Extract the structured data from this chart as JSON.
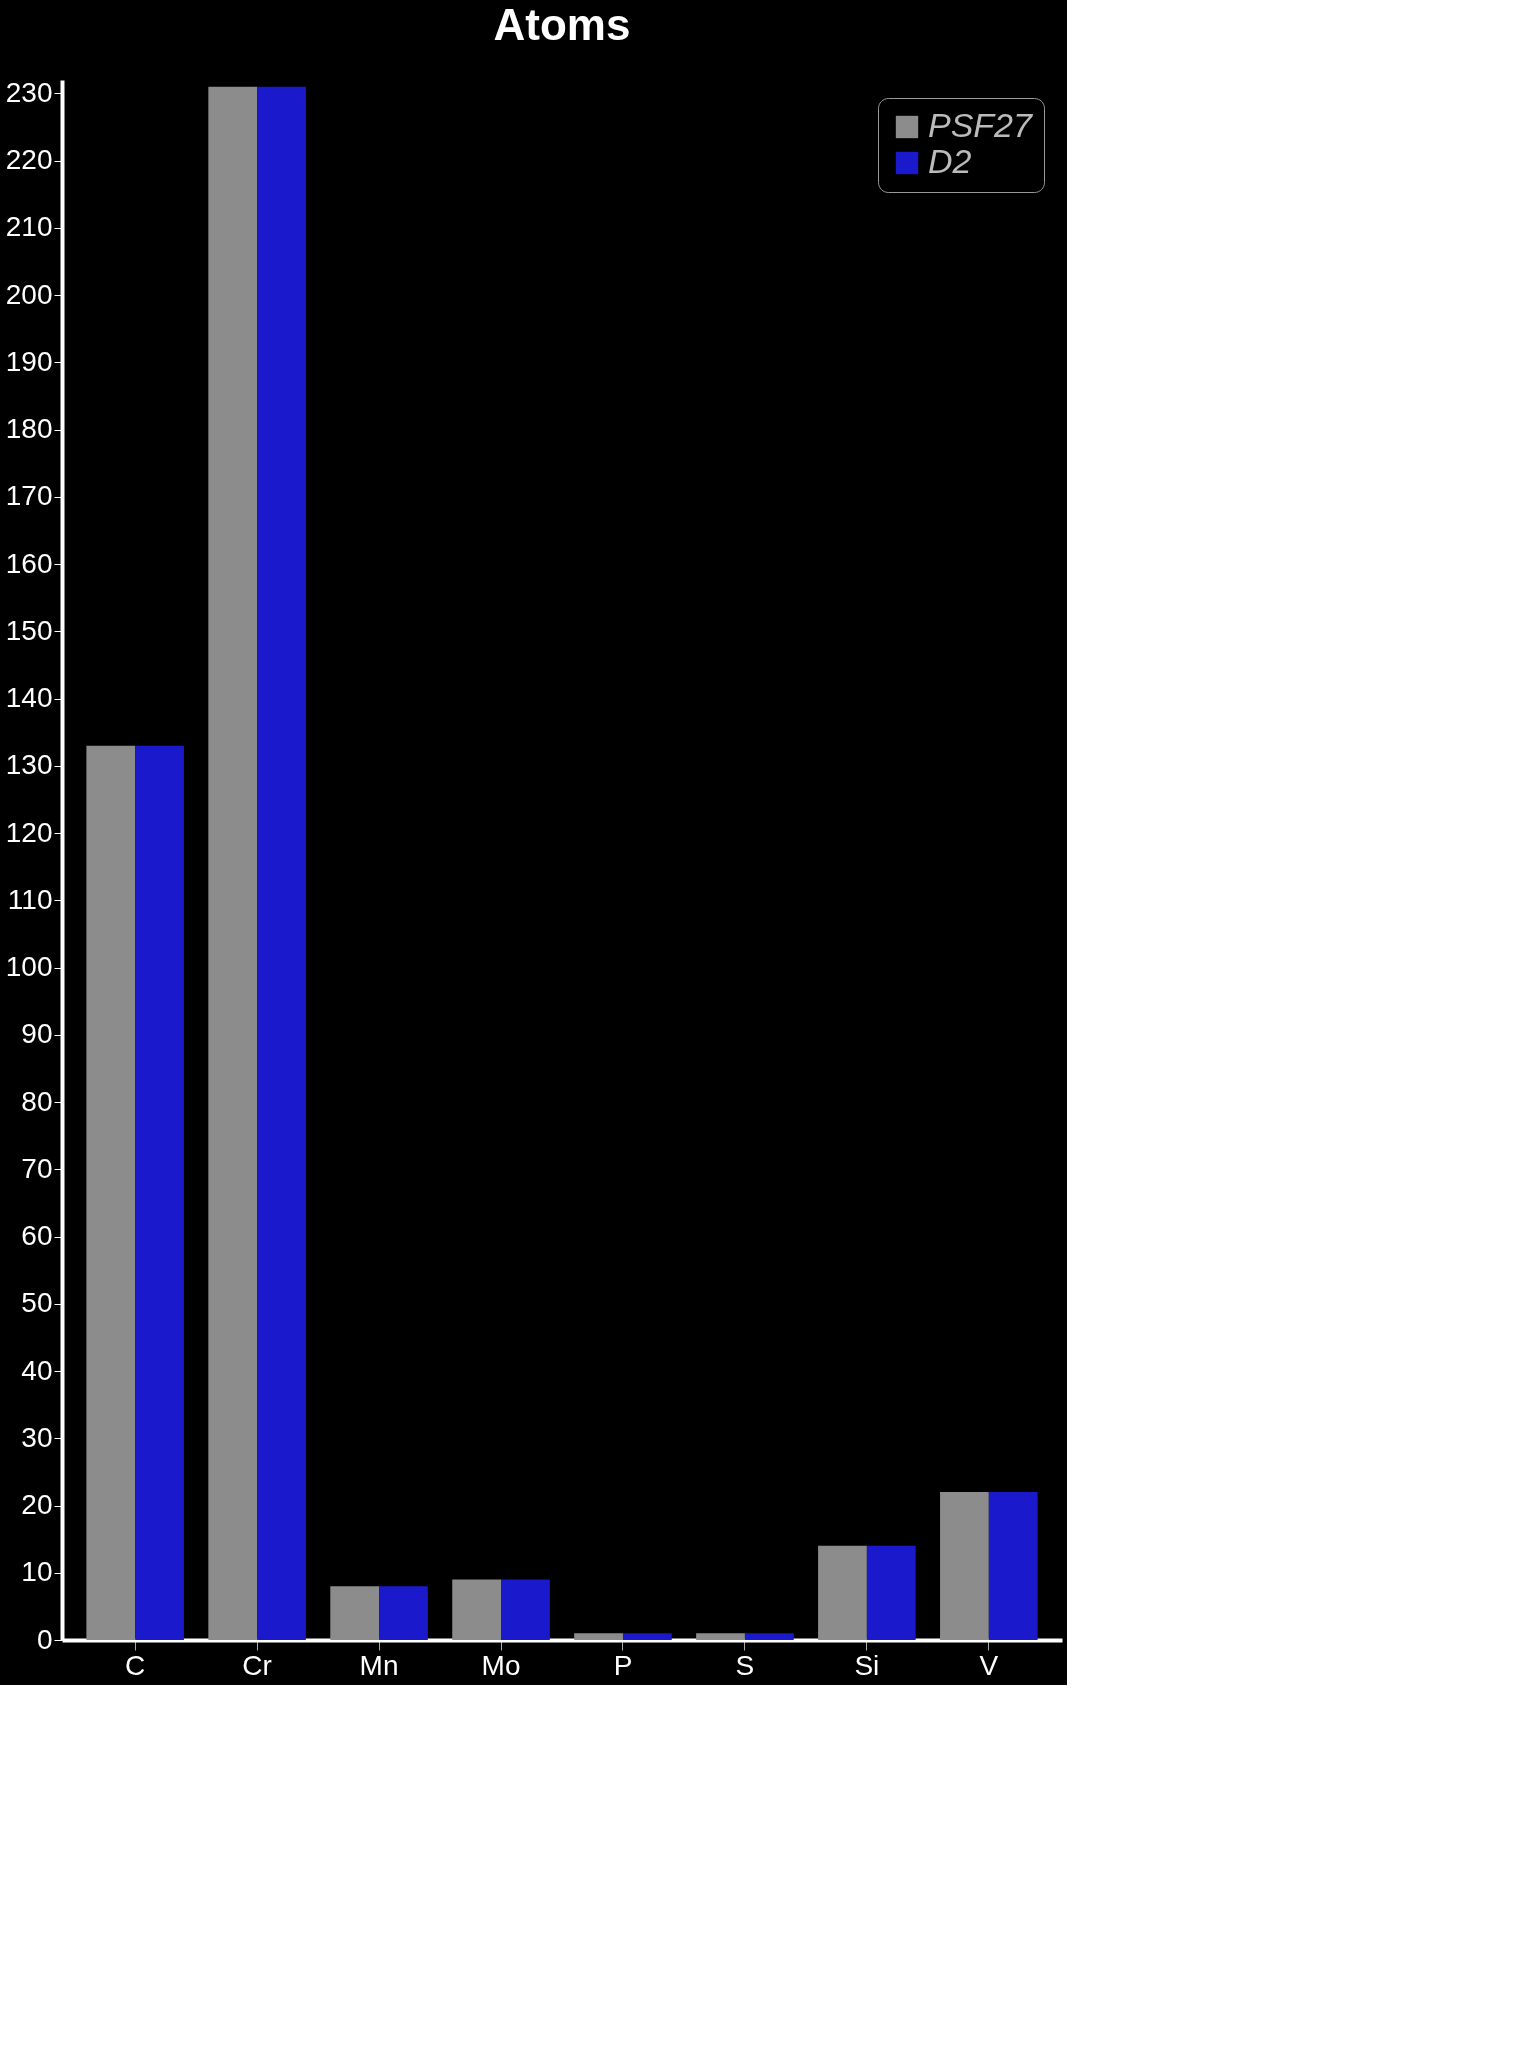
{
  "chart_data": {
    "type": "bar",
    "title": "Atoms",
    "categories": [
      "C",
      "Cr",
      "Mn",
      "Mo",
      "P",
      "S",
      "Si",
      "V"
    ],
    "series": [
      {
        "name": "PSF27",
        "color": "#8c8c8c",
        "values": [
          133,
          231,
          8,
          9,
          1,
          1,
          14,
          22
        ]
      },
      {
        "name": "D2",
        "color": "#1a1acc",
        "values": [
          133,
          231,
          8,
          9,
          1,
          1,
          14,
          22
        ]
      }
    ],
    "ylim": [
      0,
      232
    ],
    "yticks": [
      0,
      10,
      20,
      30,
      40,
      50,
      60,
      70,
      80,
      90,
      100,
      110,
      120,
      130,
      140,
      150,
      160,
      170,
      180,
      190,
      200,
      210,
      220,
      230
    ],
    "grid": false,
    "legend": "top right"
  }
}
